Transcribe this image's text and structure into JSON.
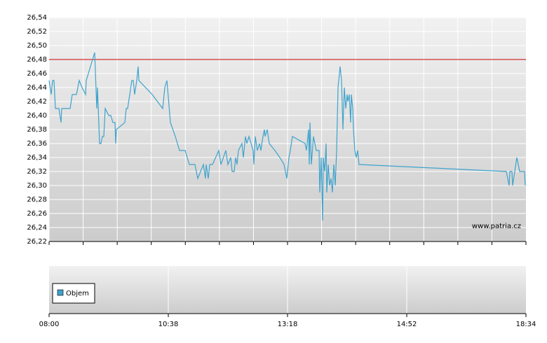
{
  "chart_data": {
    "type": "line",
    "x": [
      0,
      3,
      5,
      7,
      9,
      14,
      17,
      18,
      25,
      30,
      33,
      39,
      43,
      47,
      52,
      53,
      65,
      68,
      69,
      72,
      74,
      76,
      78,
      80,
      85,
      88,
      91,
      94,
      95,
      96,
      108,
      110,
      112,
      115,
      118,
      120,
      122,
      125,
      127,
      128,
      147,
      162,
      165,
      168,
      173,
      180,
      186,
      194,
      200,
      208,
      212,
      220,
      223,
      224,
      227,
      229,
      233,
      242,
      245,
      252,
      255,
      259,
      261,
      264,
      266,
      268,
      270,
      275,
      277,
      280,
      282,
      285,
      288,
      291,
      292,
      294,
      297,
      300,
      302,
      305,
      307,
      308,
      311,
      314,
      322,
      329,
      335,
      339,
      342,
      344,
      347,
      365,
      367,
      370,
      371,
      372,
      374,
      377,
      381,
      385,
      386,
      388,
      390,
      391,
      393,
      395,
      396,
      398,
      400,
      402,
      404,
      406,
      408,
      410,
      412,
      415,
      417,
      419,
      421,
      423,
      425,
      426,
      428,
      430,
      431,
      433,
      434,
      436,
      438,
      440,
      442,
      652,
      656,
      657,
      660,
      661,
      667,
      671,
      675,
      678,
      679
    ],
    "series": [
      {
        "color": "#3fa3cc",
        "values": [
          26.45,
          26.43,
          26.45,
          26.45,
          26.41,
          26.41,
          26.39,
          26.41,
          26.41,
          26.41,
          26.43,
          26.43,
          26.45,
          26.44,
          26.43,
          26.45,
          26.49,
          26.41,
          26.44,
          26.36,
          26.36,
          26.37,
          26.37,
          26.41,
          26.4,
          26.4,
          26.39,
          26.39,
          26.36,
          26.38,
          26.39,
          26.41,
          26.41,
          26.43,
          26.45,
          26.45,
          26.43,
          26.45,
          26.47,
          26.45,
          26.43,
          26.41,
          26.44,
          26.45,
          26.39,
          26.37,
          26.35,
          26.35,
          26.33,
          26.33,
          26.31,
          26.33,
          26.31,
          26.33,
          26.31,
          26.33,
          26.33,
          26.35,
          26.33,
          26.35,
          26.33,
          26.34,
          26.32,
          26.32,
          26.34,
          26.33,
          26.35,
          26.36,
          26.34,
          26.37,
          26.36,
          26.37,
          26.36,
          26.35,
          26.33,
          26.37,
          26.35,
          26.36,
          26.35,
          26.37,
          26.38,
          26.37,
          26.38,
          26.36,
          26.35,
          26.34,
          26.33,
          26.31,
          26.34,
          26.35,
          26.37,
          26.36,
          26.35,
          26.38,
          26.33,
          26.39,
          26.33,
          26.37,
          26.35,
          26.35,
          26.29,
          26.34,
          26.25,
          26.34,
          26.32,
          26.36,
          26.29,
          26.33,
          26.3,
          26.31,
          26.29,
          26.33,
          26.3,
          26.35,
          26.44,
          26.47,
          26.45,
          26.38,
          26.44,
          26.41,
          26.43,
          26.42,
          26.43,
          26.39,
          26.43,
          26.41,
          26.38,
          26.35,
          26.34,
          26.35,
          26.33,
          26.32,
          26.3,
          26.32,
          26.32,
          26.3,
          26.34,
          26.32,
          26.32,
          26.32,
          26.3
        ]
      }
    ],
    "ylim": [
      26.22,
      26.54
    ],
    "yticks": [
      {
        "value": 26.22,
        "label": "26,22"
      },
      {
        "value": 26.24,
        "label": "26,24"
      },
      {
        "value": 26.26,
        "label": "26,26"
      },
      {
        "value": 26.28,
        "label": "26,28"
      },
      {
        "value": 26.3,
        "label": "26,30"
      },
      {
        "value": 26.32,
        "label": "26,32"
      },
      {
        "value": 26.34,
        "label": "26,34"
      },
      {
        "value": 26.36,
        "label": "26,36"
      },
      {
        "value": 26.38,
        "label": "26,38"
      },
      {
        "value": 26.4,
        "label": "26,40"
      },
      {
        "value": 26.42,
        "label": "26,42"
      },
      {
        "value": 26.44,
        "label": "26,44"
      },
      {
        "value": 26.46,
        "label": "26,46"
      },
      {
        "value": 26.48,
        "label": "26,48"
      },
      {
        "value": 26.5,
        "label": "26,50"
      },
      {
        "value": 26.52,
        "label": "26,52"
      },
      {
        "value": 26.54,
        "label": "26,54"
      }
    ],
    "xlim": [
      0,
      680
    ],
    "xticks": [
      {
        "value": 0,
        "label": "08:00"
      },
      {
        "value": 170,
        "label": "10:38"
      },
      {
        "value": 340,
        "label": "13:18"
      },
      {
        "value": 510,
        "label": "14:52"
      },
      {
        "value": 680,
        "label": "18:34"
      }
    ],
    "reference_line": {
      "value": 26.48,
      "color": "#cc0000"
    },
    "watermark": "www.patria.cz",
    "volume_legend": {
      "label": "Objem",
      "color": "#3fa3cc"
    },
    "grid": true
  }
}
